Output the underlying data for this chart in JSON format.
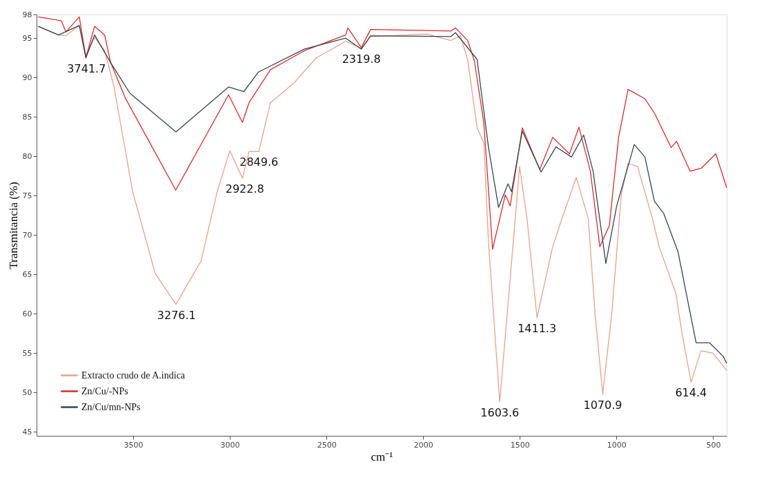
{
  "chart_data": {
    "type": "line",
    "xlabel": "cm⁻¹",
    "ylabel": "Transmitancia  (%)",
    "xlim": [
      4000,
      430
    ],
    "ylim": [
      44.5,
      98
    ],
    "xticks": [
      3500,
      3000,
      2500,
      2000,
      1500,
      1000,
      500
    ],
    "yticks": [
      45,
      50,
      55,
      60,
      65,
      70,
      75,
      80,
      85,
      90,
      95,
      98
    ],
    "grid": false,
    "legend": "bottom left",
    "marker": "none",
    "line_style": "solid",
    "series": [
      {
        "name": "Extracto crudo de A.indica",
        "color": "#e8a08a",
        "x": [
          3992,
          3886,
          3848,
          3779,
          3745,
          3700,
          3648,
          3600,
          3503,
          3386,
          3279,
          3149,
          3066,
          3000,
          2935,
          2901,
          2850,
          2790,
          2673,
          2553,
          2401,
          2320,
          2272,
          1979,
          1857,
          1808,
          1770,
          1721,
          1686,
          1662,
          1604,
          1501,
          1463,
          1411,
          1379,
          1330,
          1282,
          1208,
          1146,
          1111,
          1071,
          1024,
          975,
          940,
          891,
          814,
          779,
          692,
          661,
          614,
          563,
          500,
          430
        ],
        "values": [
          96.5,
          95.4,
          95.3,
          96.6,
          92.8,
          95.1,
          93.4,
          88.9,
          75.5,
          65.1,
          61.2,
          66.7,
          75.5,
          80.7,
          77.2,
          80.6,
          80.6,
          86.8,
          89.2,
          92.5,
          94.6,
          93.7,
          95.2,
          95.5,
          94.7,
          95.3,
          92.3,
          83.6,
          81.7,
          69.0,
          48.8,
          78.7,
          72.1,
          59.5,
          63.1,
          68.5,
          72.1,
          77.3,
          72.1,
          60.1,
          49.8,
          60.1,
          75.1,
          79.1,
          78.7,
          72.1,
          68.5,
          62.5,
          57.5,
          51.3,
          55.3,
          55.0,
          52.8
        ]
      },
      {
        "name": "Zn/Cu/-NPs",
        "color": "#d92b2b",
        "x": [
          3992,
          3872,
          3848,
          3779,
          3745,
          3700,
          3648,
          3617,
          3541,
          3280,
          3007,
          2935,
          2901,
          2790,
          2615,
          2401,
          2390,
          2320,
          2272,
          1857,
          1833,
          1770,
          1735,
          1686,
          1641,
          1575,
          1550,
          1487,
          1397,
          1330,
          1243,
          1194,
          1135,
          1086,
          1037,
          989,
          940,
          853,
          804,
          717,
          689,
          619,
          560,
          486,
          430
        ],
        "values": [
          97.7,
          97.2,
          95.8,
          97.7,
          92.5,
          96.5,
          95.4,
          91.9,
          87.4,
          75.7,
          87.8,
          84.3,
          86.8,
          91.0,
          93.4,
          95.4,
          96.3,
          93.8,
          96.1,
          95.9,
          96.3,
          94.7,
          92.1,
          84.2,
          68.2,
          75.1,
          73.7,
          83.6,
          78.3,
          82.4,
          80.3,
          83.7,
          78.1,
          68.5,
          71.2,
          82.4,
          88.5,
          87.3,
          85.5,
          81.1,
          81.9,
          78.1,
          78.5,
          80.3,
          76.0
        ]
      },
      {
        "name": "Zn/Cu/mn-NPs",
        "color": "#34454a",
        "x": [
          3992,
          3886,
          3779,
          3745,
          3700,
          3617,
          3517,
          3279,
          3007,
          2928,
          2852,
          2615,
          2401,
          2320,
          2272,
          1857,
          1833,
          1721,
          1662,
          1610,
          1561,
          1543,
          1487,
          1390,
          1313,
          1233,
          1170,
          1121,
          1055,
          999,
          908,
          853,
          804,
          755,
          682,
          588,
          518,
          448,
          430
        ],
        "values": [
          96.5,
          95.4,
          96.6,
          92.5,
          95.4,
          91.9,
          88.0,
          83.1,
          88.8,
          88.2,
          90.7,
          93.6,
          95.0,
          93.6,
          95.3,
          95.2,
          95.7,
          92.3,
          81.1,
          73.5,
          76.5,
          75.5,
          83.2,
          78.0,
          81.2,
          79.9,
          82.7,
          78.1,
          66.4,
          73.7,
          81.5,
          79.9,
          74.3,
          72.7,
          67.9,
          56.3,
          56.3,
          54.6,
          53.7
        ]
      }
    ],
    "annotations": [
      {
        "text": "3741.7",
        "x": 3741.7,
        "y": 92.5
      },
      {
        "text": "3276.1",
        "x": 3276.1,
        "y": 61.2
      },
      {
        "text": "2922.8",
        "x": 2922.8,
        "y": 77.2
      },
      {
        "text": "2849.6",
        "x": 2849.6,
        "y": 80.6
      },
      {
        "text": "2319.8",
        "x": 2319.8,
        "y": 93.7
      },
      {
        "text": "1603.6",
        "x": 1603.6,
        "y": 48.8
      },
      {
        "text": "1411.3",
        "x": 1411.3,
        "y": 59.5
      },
      {
        "text": "1070.9",
        "x": 1070.9,
        "y": 49.8
      },
      {
        "text": "614.4",
        "x": 614.4,
        "y": 51.3
      }
    ]
  }
}
